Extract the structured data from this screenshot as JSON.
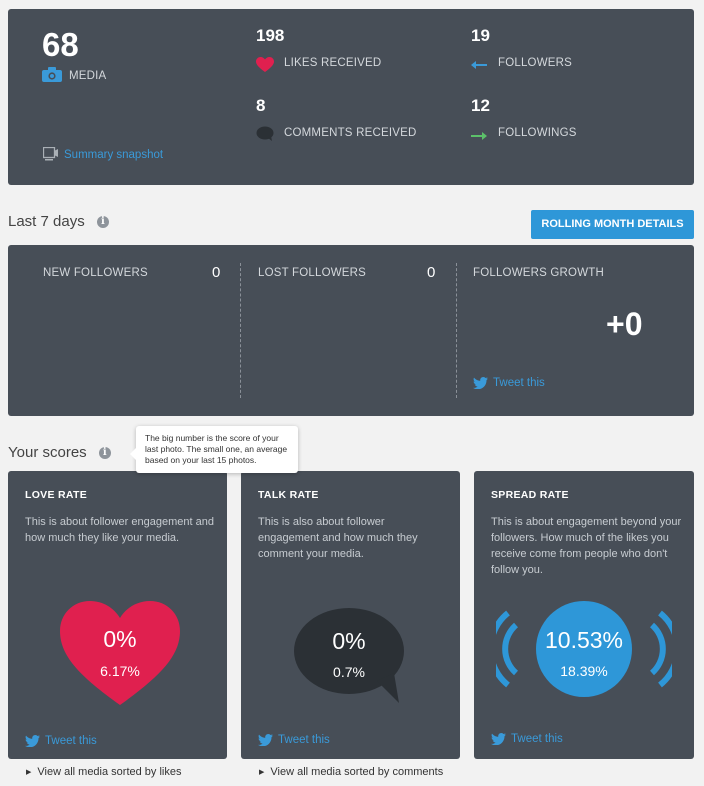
{
  "summary": {
    "media": {
      "value": "68",
      "label": "MEDIA"
    },
    "likes": {
      "value": "198",
      "label": "LIKES RECEIVED"
    },
    "comments": {
      "value": "8",
      "label": "COMMENTS RECEIVED"
    },
    "followers": {
      "value": "19",
      "label": "FOLLOWERS"
    },
    "followings": {
      "value": "12",
      "label": "FOLLOWINGS"
    },
    "snapshot_link": "Summary snapshot"
  },
  "last7": {
    "title": "Last 7 days",
    "rolling_button": "ROLLING MONTH DETAILS",
    "new_followers": {
      "label": "NEW FOLLOWERS",
      "value": "0"
    },
    "lost_followers": {
      "label": "LOST FOLLOWERS",
      "value": "0"
    },
    "growth": {
      "label": "FOLLOWERS GROWTH",
      "value": "+0"
    },
    "tweet": "Tweet this"
  },
  "scores": {
    "title": "Your scores",
    "tooltip": "The big number is the score of your last photo. The small one, an average based on your last 15 photos.",
    "love": {
      "title": "LOVE RATE",
      "desc": "This is about follower engagement and how much they like your media.",
      "big": "0%",
      "small": "6.17%",
      "tweet": "Tweet this",
      "footer": "View all media sorted by likes"
    },
    "talk": {
      "title": "TALK RATE",
      "desc": "This is also about follower engagement and how much they comment your media.",
      "big": "0%",
      "small": "0.7%",
      "tweet": "Tweet this",
      "footer": "View all media sorted by comments"
    },
    "spread": {
      "title": "SPREAD RATE",
      "desc": "This is about engagement beyond your followers. How much of the likes you receive come from people who don't follow you.",
      "big": "10.53%",
      "small": "18.39%",
      "tweet": "Tweet this"
    }
  },
  "colors": {
    "panel": "#474e57",
    "accent": "#3a9ad9",
    "love": "#e0204f",
    "talk": "#2b3035",
    "spread": "#2e97d8",
    "green": "#5cc16a"
  }
}
